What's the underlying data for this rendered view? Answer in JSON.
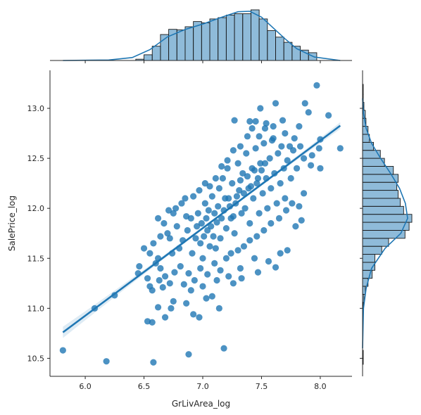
{
  "chart_data": {
    "type": "scatter",
    "variant": "jointplot with regression line and marginal histograms",
    "xlabel": "GrLivArea_log",
    "ylabel": "SalePrice_log",
    "xlim": [
      5.7,
      8.27
    ],
    "ylim": [
      10.32,
      13.38
    ],
    "x_ticks": [
      "6.0",
      "6.5",
      "7.0",
      "7.5",
      "8.0"
    ],
    "y_ticks": [
      "10.5",
      "11.0",
      "11.5",
      "12.0",
      "12.5",
      "13.0"
    ],
    "grid": false,
    "color": "#1f77b4",
    "regression": {
      "slope": 0.876,
      "intercept": 5.67,
      "x_range": [
        5.81,
        8.17
      ]
    },
    "points": [
      [
        5.81,
        10.58
      ],
      [
        6.18,
        10.47
      ],
      [
        6.08,
        11.0
      ],
      [
        6.25,
        11.13
      ],
      [
        6.58,
        10.46
      ],
      [
        6.53,
        10.87
      ],
      [
        6.57,
        10.86
      ],
      [
        6.88,
        10.54
      ],
      [
        7.18,
        10.6
      ],
      [
        6.68,
        10.91
      ],
      [
        6.73,
        11.0
      ],
      [
        6.75,
        11.07
      ],
      [
        6.92,
        10.94
      ],
      [
        6.97,
        10.91
      ],
      [
        7.03,
        11.1
      ],
      [
        7.14,
        11.0
      ],
      [
        7.08,
        11.12
      ],
      [
        6.86,
        11.05
      ],
      [
        6.62,
        11.01
      ],
      [
        6.45,
        11.35
      ],
      [
        6.46,
        11.42
      ],
      [
        6.53,
        11.3
      ],
      [
        6.55,
        11.22
      ],
      [
        6.57,
        11.18
      ],
      [
        6.63,
        11.28
      ],
      [
        6.66,
        11.21
      ],
      [
        7.26,
        11.25
      ],
      [
        7.33,
        11.3
      ],
      [
        7.47,
        11.36
      ],
      [
        7.62,
        11.41
      ],
      [
        7.66,
        11.55
      ],
      [
        7.56,
        11.47
      ],
      [
        7.72,
        11.58
      ],
      [
        7.79,
        11.82
      ],
      [
        7.84,
        11.88
      ],
      [
        7.82,
        12.02
      ],
      [
        7.86,
        12.15
      ],
      [
        7.93,
        12.53
      ],
      [
        7.99,
        12.6
      ],
      [
        8.0,
        12.69
      ],
      [
        8.07,
        12.93
      ],
      [
        8.17,
        12.6
      ],
      [
        7.97,
        13.23
      ],
      [
        7.87,
        13.05
      ],
      [
        7.9,
        12.96
      ],
      [
        7.62,
        13.05
      ],
      [
        7.49,
        13.0
      ],
      [
        7.4,
        12.87
      ],
      [
        7.27,
        12.88
      ],
      [
        7.45,
        12.87
      ],
      [
        7.53,
        12.8
      ],
      [
        7.59,
        12.68
      ],
      [
        7.7,
        12.75
      ],
      [
        7.78,
        12.7
      ],
      [
        7.82,
        12.82
      ],
      [
        7.74,
        12.62
      ],
      [
        7.92,
        12.43
      ],
      [
        8.0,
        12.4
      ],
      [
        6.5,
        11.6
      ],
      [
        6.62,
        11.5
      ],
      [
        6.58,
        11.65
      ],
      [
        6.62,
        11.9
      ],
      [
        6.67,
        11.85
      ],
      [
        6.72,
        11.7
      ],
      [
        6.75,
        11.95
      ],
      [
        6.8,
        11.6
      ],
      [
        6.82,
        12.05
      ],
      [
        6.85,
        12.1
      ],
      [
        6.9,
        11.9
      ],
      [
        6.94,
        11.7
      ],
      [
        6.96,
        11.95
      ],
      [
        6.99,
        11.85
      ],
      [
        7.0,
        11.5
      ],
      [
        7.02,
        12.05
      ],
      [
        7.04,
        11.78
      ],
      [
        7.06,
        11.62
      ],
      [
        7.08,
        12.12
      ],
      [
        7.1,
        11.95
      ],
      [
        7.12,
        11.86
      ],
      [
        7.14,
        12.2
      ],
      [
        7.15,
        11.7
      ],
      [
        7.17,
        12.3
      ],
      [
        7.18,
        11.98
      ],
      [
        7.2,
        11.8
      ],
      [
        7.21,
        12.4
      ],
      [
        7.22,
        12.1
      ],
      [
        7.24,
        11.9
      ],
      [
        7.25,
        12.25
      ],
      [
        7.27,
        11.75
      ],
      [
        7.28,
        12.05
      ],
      [
        7.3,
        12.45
      ],
      [
        7.31,
        12.18
      ],
      [
        7.33,
        11.95
      ],
      [
        7.34,
        12.35
      ],
      [
        7.36,
        12.0
      ],
      [
        7.37,
        12.55
      ],
      [
        7.39,
        12.2
      ],
      [
        7.4,
        11.85
      ],
      [
        7.42,
        12.4
      ],
      [
        7.43,
        12.1
      ],
      [
        7.45,
        12.6
      ],
      [
        7.46,
        12.25
      ],
      [
        7.48,
        11.95
      ],
      [
        7.49,
        12.45
      ],
      [
        7.51,
        12.15
      ],
      [
        7.52,
        12.65
      ],
      [
        7.54,
        12.3
      ],
      [
        7.55,
        12.0
      ],
      [
        7.57,
        12.5
      ],
      [
        7.58,
        12.2
      ],
      [
        7.6,
        12.7
      ],
      [
        7.61,
        12.35
      ],
      [
        7.63,
        12.05
      ],
      [
        7.64,
        12.55
      ],
      [
        7.66,
        12.25
      ],
      [
        7.67,
        12.62
      ],
      [
        7.69,
        12.4
      ],
      [
        7.7,
        12.1
      ],
      [
        7.72,
        12.48
      ],
      [
        7.75,
        12.3
      ],
      [
        7.77,
        12.58
      ],
      [
        7.8,
        12.4
      ],
      [
        7.83,
        12.62
      ],
      [
        7.86,
        12.5
      ],
      [
        6.7,
        11.75
      ],
      [
        6.74,
        11.55
      ],
      [
        6.78,
        11.82
      ],
      [
        6.83,
        11.68
      ],
      [
        6.87,
        11.78
      ],
      [
        6.91,
        11.55
      ],
      [
        6.95,
        11.82
      ],
      [
        6.98,
        11.65
      ],
      [
        7.01,
        11.72
      ],
      [
        7.03,
        11.9
      ],
      [
        7.05,
        11.98
      ],
      [
        7.07,
        11.82
      ],
      [
        7.09,
        11.72
      ],
      [
        7.11,
        11.6
      ],
      [
        7.13,
        12.02
      ],
      [
        7.16,
        11.9
      ],
      [
        7.19,
        12.1
      ],
      [
        7.23,
        12.02
      ],
      [
        7.26,
        11.92
      ],
      [
        7.29,
        12.12
      ],
      [
        7.32,
        12.28
      ],
      [
        7.35,
        12.15
      ],
      [
        7.38,
        12.32
      ],
      [
        7.41,
        12.22
      ],
      [
        7.44,
        12.38
      ],
      [
        7.47,
        12.3
      ],
      [
        7.5,
        12.38
      ],
      [
        7.53,
        12.45
      ],
      [
        6.6,
        11.45
      ],
      [
        6.64,
        11.4
      ],
      [
        6.68,
        11.32
      ],
      [
        6.76,
        11.36
      ],
      [
        6.81,
        11.42
      ],
      [
        6.88,
        11.35
      ],
      [
        6.93,
        11.28
      ],
      [
        6.98,
        11.4
      ],
      [
        7.04,
        11.34
      ],
      [
        7.1,
        11.45
      ],
      [
        7.15,
        11.38
      ],
      [
        7.2,
        11.5
      ],
      [
        7.24,
        11.55
      ],
      [
        7.3,
        11.58
      ],
      [
        7.35,
        11.62
      ],
      [
        7.4,
        11.68
      ],
      [
        7.46,
        11.72
      ],
      [
        7.52,
        11.78
      ],
      [
        7.58,
        11.85
      ],
      [
        7.65,
        11.9
      ],
      [
        7.71,
        11.98
      ],
      [
        7.76,
        12.05
      ],
      [
        6.72,
        11.25
      ],
      [
        6.84,
        11.24
      ],
      [
        6.9,
        11.18
      ],
      [
        7.0,
        11.22
      ],
      [
        7.12,
        11.28
      ],
      [
        7.22,
        11.32
      ],
      [
        7.32,
        11.4
      ],
      [
        7.44,
        11.5
      ],
      [
        6.55,
        11.55
      ],
      [
        6.64,
        11.72
      ],
      [
        6.71,
        11.98
      ],
      [
        6.77,
        12.0
      ],
      [
        6.86,
        11.92
      ],
      [
        6.92,
        12.12
      ],
      [
        6.97,
        12.18
      ],
      [
        7.02,
        12.25
      ],
      [
        7.06,
        12.22
      ],
      [
        7.11,
        12.3
      ],
      [
        7.16,
        12.42
      ],
      [
        7.21,
        12.48
      ],
      [
        7.26,
        12.58
      ],
      [
        7.32,
        12.62
      ],
      [
        7.38,
        12.72
      ],
      [
        7.42,
        12.8
      ],
      [
        7.48,
        12.72
      ],
      [
        7.54,
        12.85
      ],
      [
        7.6,
        12.82
      ],
      [
        7.68,
        12.88
      ]
    ],
    "top_hist": {
      "bin_edges": [
        6.43,
        6.5,
        6.57,
        6.64,
        6.71,
        6.78,
        6.85,
        6.92,
        6.99,
        7.06,
        7.13,
        7.2,
        7.27,
        7.34,
        7.41,
        7.48,
        7.55,
        7.62,
        7.69,
        7.76,
        7.83,
        7.9,
        7.97
      ],
      "counts": [
        5,
        22,
        55,
        100,
        120,
        118,
        130,
        150,
        145,
        160,
        165,
        175,
        180,
        180,
        195,
        160,
        115,
        90,
        70,
        55,
        40,
        30
      ]
    },
    "top_kde": {
      "x": [
        5.81,
        6.2,
        6.4,
        6.55,
        6.7,
        6.85,
        7.0,
        7.15,
        7.3,
        7.4,
        7.5,
        7.6,
        7.7,
        7.8,
        7.95,
        8.17
      ],
      "density": [
        0,
        0.01,
        0.06,
        0.22,
        0.48,
        0.63,
        0.74,
        0.87,
        0.99,
        1.0,
        0.88,
        0.66,
        0.44,
        0.24,
        0.07,
        0
      ]
    },
    "right_hist": {
      "bin_edges": [
        10.44,
        10.5,
        10.58,
        10.66,
        10.74,
        10.82,
        10.9,
        10.98,
        11.06,
        11.14,
        11.22,
        11.3,
        11.38,
        11.46,
        11.54,
        11.62,
        11.7,
        11.78,
        11.86,
        11.94,
        12.02,
        12.1,
        12.18,
        12.26,
        12.34,
        12.42,
        12.5,
        12.58,
        12.66,
        12.74,
        12.82,
        12.9,
        12.98,
        13.06,
        13.14,
        13.24
      ],
      "counts": [
        1,
        1,
        0,
        0,
        0,
        1,
        0,
        1,
        2,
        4,
        8,
        14,
        18,
        18,
        28,
        38,
        62,
        68,
        72,
        60,
        55,
        52,
        50,
        52,
        45,
        32,
        26,
        16,
        10,
        8,
        5,
        4,
        2,
        1,
        1
      ]
    },
    "right_kde": {
      "y": [
        10.6,
        11.0,
        11.2,
        11.4,
        11.6,
        11.75,
        11.9,
        12.05,
        12.2,
        12.35,
        12.5,
        12.65,
        12.8,
        12.95,
        13.1
      ],
      "density": [
        0,
        0.02,
        0.08,
        0.2,
        0.5,
        0.85,
        1.0,
        0.95,
        0.82,
        0.62,
        0.4,
        0.2,
        0.08,
        0.02,
        0
      ]
    }
  }
}
